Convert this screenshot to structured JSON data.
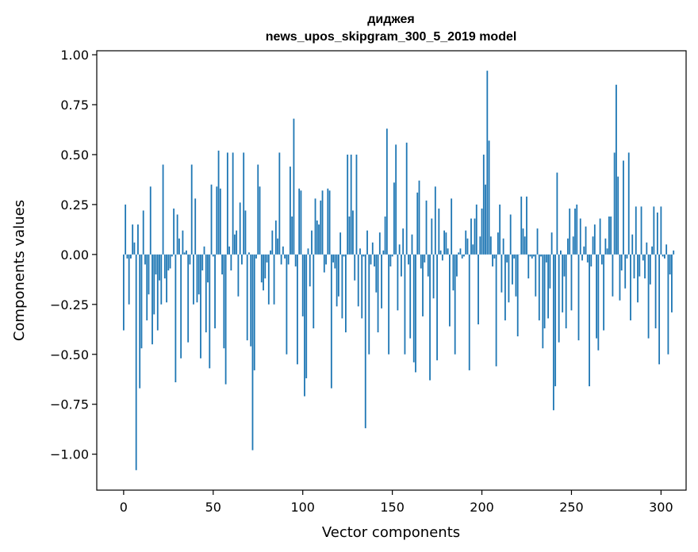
{
  "chart_data": {
    "type": "bar",
    "title": "диджея",
    "subtitle": "news_upos_skipgram_300_5_2019 model",
    "xlabel": "Vector components",
    "ylabel": "Components values",
    "xlim": [
      -15,
      314
    ],
    "ylim": [
      -1.18,
      1.02
    ],
    "xticks": [
      0,
      50,
      100,
      150,
      200,
      250,
      300
    ],
    "yticks": [
      1.0,
      0.75,
      0.5,
      0.25,
      0.0,
      -0.25,
      -0.5,
      -0.75,
      -1.0
    ],
    "ytick_labels": [
      "1.00",
      "0.75",
      "0.50",
      "0.25",
      "0.00",
      "−0.25",
      "−0.50",
      "−0.75",
      "−1.00"
    ],
    "xtick_labels": [
      "0",
      "50",
      "100",
      "150",
      "200",
      "250",
      "300"
    ],
    "bar_color": "#1f77b4",
    "grid": false,
    "values": [
      -0.38,
      0.25,
      -0.02,
      -0.25,
      -0.02,
      0.15,
      0.06,
      -1.08,
      0.15,
      -0.67,
      -0.47,
      0.22,
      -0.05,
      -0.33,
      -0.2,
      0.34,
      -0.45,
      -0.3,
      -0.1,
      -0.38,
      -0.13,
      -0.25,
      0.45,
      -0.12,
      -0.24,
      -0.08,
      -0.07,
      -0.01,
      0.23,
      -0.64,
      0.2,
      0.08,
      -0.52,
      0.12,
      0.01,
      0.02,
      -0.44,
      -0.05,
      0.45,
      -0.25,
      0.28,
      -0.24,
      -0.2,
      -0.52,
      -0.08,
      0.04,
      -0.39,
      -0.14,
      -0.57,
      0.35,
      -0.01,
      -0.37,
      0.34,
      0.52,
      0.33,
      -0.1,
      -0.47,
      -0.65,
      0.51,
      0.04,
      -0.08,
      0.51,
      0.1,
      0.12,
      -0.21,
      0.26,
      -0.05,
      0.51,
      0.22,
      -0.43,
      0.01,
      -0.46,
      -0.98,
      -0.58,
      -0.02,
      0.45,
      0.34,
      -0.14,
      -0.18,
      -0.12,
      -0.04,
      -0.25,
      0.02,
      0.12,
      -0.25,
      0.17,
      0.08,
      0.51,
      -0.05,
      0.04,
      -0.02,
      -0.5,
      -0.05,
      0.44,
      0.19,
      0.68,
      -0.06,
      -0.55,
      0.33,
      0.32,
      -0.31,
      -0.71,
      -0.62,
      0.03,
      -0.16,
      0.12,
      -0.37,
      0.28,
      0.17,
      0.15,
      0.27,
      0.32,
      -0.09,
      -0.05,
      0.33,
      0.32,
      -0.67,
      -0.04,
      -0.07,
      -0.26,
      -0.21,
      0.11,
      -0.32,
      -0.01,
      -0.39,
      0.5,
      0.19,
      0.5,
      0.22,
      -0.13,
      0.5,
      -0.26,
      0.03,
      -0.32,
      -0.01,
      -0.87,
      0.12,
      -0.5,
      -0.05,
      0.06,
      -0.06,
      -0.19,
      -0.39,
      0.11,
      -0.27,
      0.02,
      0.19,
      0.63,
      -0.5,
      -0.06,
      -0.01,
      0.36,
      0.55,
      -0.28,
      0.05,
      -0.11,
      0.13,
      -0.5,
      0.56,
      -0.05,
      -0.42,
      0.1,
      -0.54,
      -0.59,
      0.31,
      0.37,
      -0.07,
      -0.31,
      -0.04,
      0.27,
      -0.11,
      -0.63,
      0.18,
      -0.22,
      0.34,
      -0.53,
      0.23,
      0.02,
      -0.03,
      0.12,
      0.11,
      0.03,
      -0.36,
      0.28,
      -0.18,
      -0.5,
      -0.11,
      0.01,
      0.03,
      -0.02,
      -0.01,
      0.12,
      0.08,
      -0.58,
      0.18,
      0.05,
      0.18,
      0.25,
      -0.35,
      0.09,
      0.23,
      0.5,
      0.35,
      0.92,
      0.57,
      0.09,
      -0.06,
      -0.02,
      -0.56,
      0.11,
      0.25,
      -0.19,
      0.08,
      -0.33,
      -0.04,
      -0.24,
      0.2,
      -0.15,
      -0.02,
      -0.21,
      -0.41,
      0.0,
      0.29,
      0.13,
      0.09,
      0.29,
      -0.12,
      -0.01,
      -0.02,
      -0.01,
      -0.21,
      0.13,
      -0.33,
      -0.01,
      -0.47,
      -0.37,
      -0.04,
      -0.32,
      -0.17,
      0.11,
      -0.78,
      -0.66,
      0.41,
      -0.44,
      0.02,
      -0.29,
      -0.11,
      -0.37,
      0.08,
      0.23,
      -0.28,
      0.09,
      0.23,
      0.25,
      -0.43,
      0.18,
      -0.03,
      0.04,
      0.14,
      -0.04,
      -0.66,
      -0.06,
      0.09,
      0.15,
      -0.42,
      -0.48,
      0.18,
      -0.05,
      -0.38,
      0.08,
      0.03,
      0.19,
      0.19,
      -0.21,
      0.51,
      0.85,
      0.39,
      -0.23,
      -0.08,
      0.47,
      -0.17,
      -0.02,
      0.51,
      -0.33,
      0.1,
      -0.12,
      0.24,
      -0.24,
      -0.11,
      0.24,
      -0.03,
      -0.12,
      0.06,
      -0.42,
      -0.15,
      0.04,
      0.24,
      -0.37,
      0.21,
      -0.55,
      0.24,
      -0.01,
      -0.02,
      0.05,
      -0.5,
      -0.1,
      -0.29,
      0.02
    ]
  }
}
